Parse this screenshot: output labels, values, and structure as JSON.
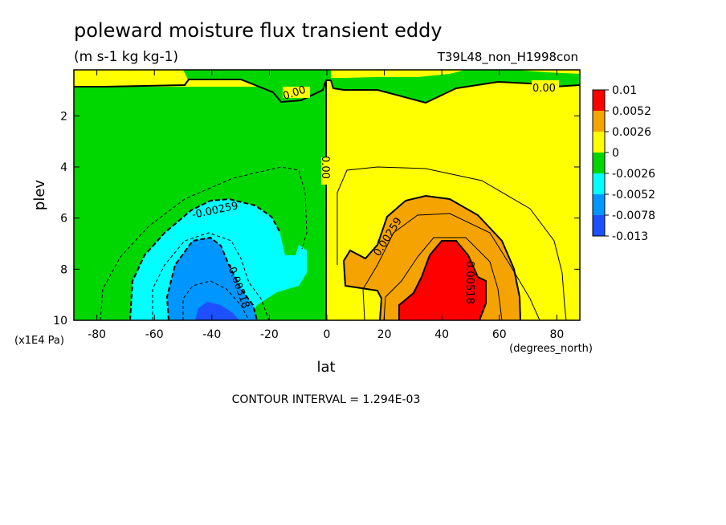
{
  "chart_data": {
    "type": "heatmap",
    "subtype": "filled contour (latitude-pressure cross section)",
    "title": "poleward moisture flux transient eddy",
    "units": "(m s-1 kg kg-1)",
    "run_label": "T39L48_non_H1998con",
    "xlabel": "lat",
    "x_units": "(degrees_north)",
    "ylabel": "plev",
    "y_units": "(x1E4 Pa)",
    "xlim": [
      -88,
      88
    ],
    "ylim": [
      10,
      0.2
    ],
    "x_ticks": [
      -80,
      -60,
      -40,
      -20,
      0,
      20,
      40,
      60,
      80
    ],
    "y_ticks": [
      2,
      4,
      6,
      8,
      10
    ],
    "contour_interval": "CONTOUR INTERVAL = 1.294E-03",
    "contour_labels": [
      "0.00",
      "0.00",
      "0.00",
      "-0.00259",
      "-0.00518",
      "0.00259",
      "0.00518"
    ],
    "legend": {
      "placement": "right",
      "labels": [
        "0.01",
        "0.0052",
        "0.0026",
        "0",
        "-0.0026",
        "-0.0052",
        "-0.0078",
        "-0.013"
      ],
      "colors": [
        "#ff0000",
        "#f5a300",
        "#ffff00",
        "#00d700",
        "#00ffff",
        "#0096ff",
        "#1e50ff"
      ]
    },
    "field_extremes": {
      "min_near": {
        "lat": -40,
        "plev": 9.8,
        "value_approx": -0.009
      },
      "max_near": {
        "lat": 45,
        "plev": 8.5,
        "value_approx": 0.007
      }
    }
  }
}
